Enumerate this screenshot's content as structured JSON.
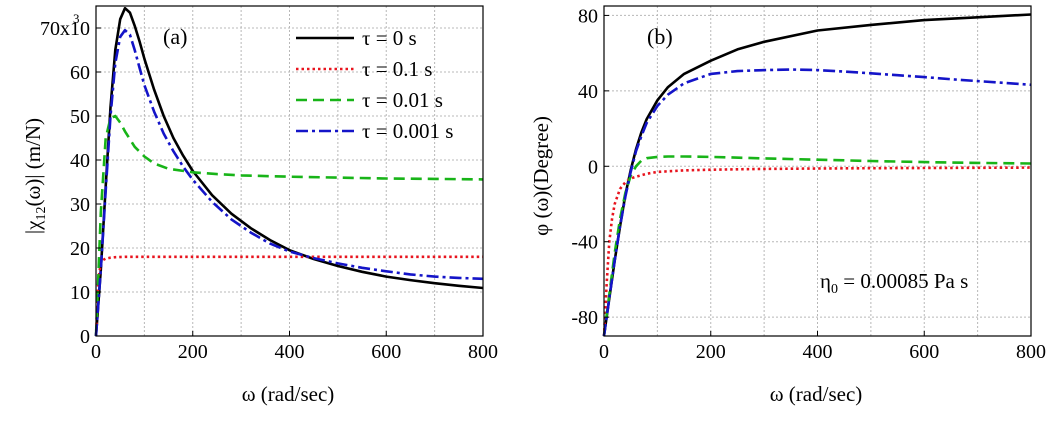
{
  "chart_data": [
    {
      "type": "line",
      "panel_label": "(a)",
      "xlabel": "ω (rad/sec)",
      "ylabel_main": "|χ",
      "ylabel_sub": "12",
      "ylabel_tail": "(ω)| (m/N)",
      "xlim": [
        0,
        800
      ],
      "ylim": [
        0,
        75000
      ],
      "x_ticks": [
        0,
        200,
        400,
        600,
        800
      ],
      "x_tick_labels": [
        "0",
        "200",
        "400",
        "600",
        "800"
      ],
      "y_ticks": [
        0,
        10000,
        20000,
        30000,
        40000,
        50000,
        60000,
        70000
      ],
      "y_tick_labels": [
        "0",
        "10",
        "20",
        "30",
        "40",
        "50",
        "60",
        "70x10"
      ],
      "y_top_exponent": "3",
      "legend_position": "top-right",
      "grid": true,
      "series": [
        {
          "name": "τ = 0 s",
          "color": "#000000",
          "style": "solid",
          "x": [
            0,
            10,
            20,
            30,
            40,
            50,
            60,
            70,
            80,
            90,
            100,
            120,
            140,
            160,
            180,
            200,
            240,
            280,
            320,
            360,
            400,
            450,
            500,
            550,
            600,
            650,
            700,
            750,
            800
          ],
          "y": [
            0,
            15000,
            34000,
            52000,
            65000,
            72000,
            74500,
            73500,
            70500,
            67000,
            63000,
            56000,
            50000,
            45000,
            41000,
            37500,
            32000,
            27800,
            24500,
            21800,
            19500,
            17500,
            15900,
            14600,
            13500,
            12700,
            12000,
            11400,
            10900
          ]
        },
        {
          "name": "τ = 0.1 s",
          "color": "#e8141e",
          "style": "dotted",
          "x": [
            0,
            5,
            10,
            15,
            20,
            30,
            40,
            60,
            100,
            200,
            400,
            600,
            800
          ],
          "y": [
            0,
            13000,
            16500,
            17300,
            17600,
            17800,
            17900,
            18000,
            18000,
            18000,
            18000,
            18000,
            18000
          ]
        },
        {
          "name": "τ = 0.01 s",
          "color": "#18b418",
          "style": "dashed",
          "x": [
            0,
            10,
            20,
            30,
            40,
            50,
            60,
            80,
            100,
            120,
            150,
            200,
            250,
            300,
            400,
            500,
            600,
            700,
            800
          ],
          "y": [
            0,
            28000,
            45000,
            49500,
            50000,
            48500,
            46500,
            43000,
            40800,
            39200,
            38000,
            37200,
            36800,
            36500,
            36200,
            36000,
            35800,
            35700,
            35600
          ]
        },
        {
          "name": "τ = 0.001 s",
          "color": "#1414c8",
          "style": "dashdot",
          "x": [
            0,
            10,
            20,
            30,
            40,
            50,
            60,
            70,
            80,
            90,
            100,
            120,
            140,
            160,
            180,
            200,
            240,
            280,
            320,
            360,
            400,
            450,
            500,
            550,
            600,
            650,
            700,
            750,
            800
          ],
          "y": [
            0,
            15000,
            33000,
            50000,
            62000,
            68000,
            69500,
            68500,
            65000,
            61000,
            57000,
            51000,
            46000,
            42000,
            38500,
            35500,
            30500,
            26500,
            23500,
            21000,
            19200,
            17700,
            16500,
            15500,
            14700,
            14000,
            13500,
            13200,
            13000
          ]
        }
      ]
    },
    {
      "type": "line",
      "panel_label": "(b)",
      "xlabel": "ω (rad/sec)",
      "ylabel": "φ (ω)(Degree)",
      "annotation_main": "η",
      "annotation_sub": "0",
      "annotation_tail": " = 0.00085 Pa s",
      "xlim": [
        0,
        800
      ],
      "ylim": [
        -90,
        85
      ],
      "x_ticks": [
        0,
        200,
        400,
        600,
        800
      ],
      "x_tick_labels": [
        "0",
        "200",
        "400",
        "600",
        "800"
      ],
      "y_ticks": [
        -80,
        -40,
        0,
        40,
        80
      ],
      "y_tick_labels": [
        "-80",
        "-40",
        "0",
        "40",
        "80"
      ],
      "grid": true,
      "series": [
        {
          "name": "τ = 0 s",
          "color": "#000000",
          "style": "solid",
          "x": [
            0,
            10,
            20,
            30,
            40,
            50,
            60,
            70,
            80,
            100,
            120,
            150,
            200,
            250,
            300,
            400,
            500,
            600,
            700,
            800
          ],
          "y": [
            -90,
            -70,
            -50,
            -32,
            -15,
            -2,
            9,
            18,
            25,
            35,
            42,
            49,
            56,
            62,
            66,
            72,
            75,
            77.5,
            79,
            80.5
          ]
        },
        {
          "name": "τ = 0.1 s",
          "color": "#e8141e",
          "style": "dotted",
          "x": [
            0,
            5,
            10,
            15,
            20,
            30,
            40,
            50,
            60,
            80,
            100,
            150,
            200,
            300,
            400,
            500,
            600,
            700,
            800
          ],
          "y": [
            -90,
            -62,
            -40,
            -28,
            -20,
            -12,
            -8.5,
            -6.5,
            -5.5,
            -4,
            -3,
            -2.2,
            -1.8,
            -1.4,
            -1.2,
            -1,
            -0.9,
            -0.8,
            -0.7
          ]
        },
        {
          "name": "τ = 0.01 s",
          "color": "#18b418",
          "style": "dashed",
          "x": [
            0,
            10,
            20,
            30,
            40,
            50,
            60,
            70,
            80,
            100,
            120,
            150,
            200,
            300,
            400,
            500,
            600,
            700,
            800
          ],
          "y": [
            -90,
            -68,
            -46,
            -28,
            -14,
            -5,
            0,
            3,
            4.3,
            5,
            5.2,
            5.2,
            5,
            4.2,
            3.5,
            2.8,
            2.2,
            1.8,
            1.5
          ]
        },
        {
          "name": "τ = 0.001 s",
          "color": "#1414c8",
          "style": "dashdot",
          "x": [
            0,
            10,
            20,
            30,
            40,
            50,
            60,
            70,
            80,
            100,
            120,
            150,
            200,
            250,
            300,
            350,
            400,
            450,
            500,
            550,
            600,
            650,
            700,
            750,
            800
          ],
          "y": [
            -90,
            -70,
            -50,
            -32,
            -16,
            -3,
            8,
            16,
            23,
            32,
            38,
            44,
            49,
            50.5,
            51,
            51.3,
            51,
            50.2,
            49.3,
            48.3,
            47.3,
            46.2,
            45.2,
            44.2,
            43.2
          ]
        }
      ]
    }
  ]
}
